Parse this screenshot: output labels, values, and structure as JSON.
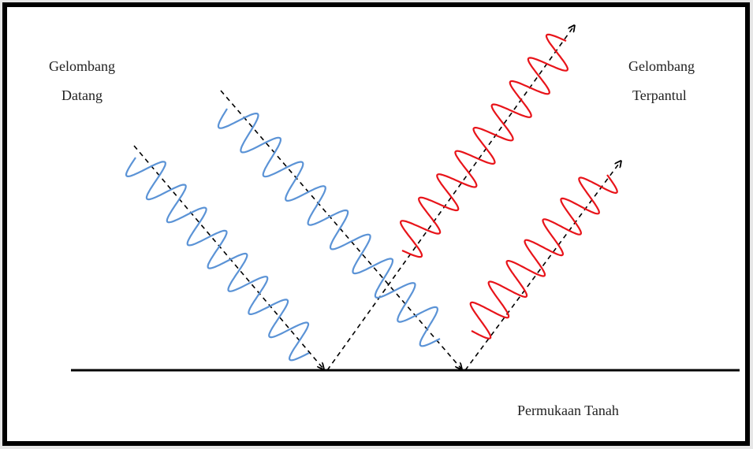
{
  "incident_label": {
    "lines": [
      "Gelombang",
      "Datang"
    ]
  },
  "reflected_label": {
    "lines": [
      "Gelombang",
      "Terpantul"
    ]
  },
  "ground_label": "Permukaan Tanah"
}
